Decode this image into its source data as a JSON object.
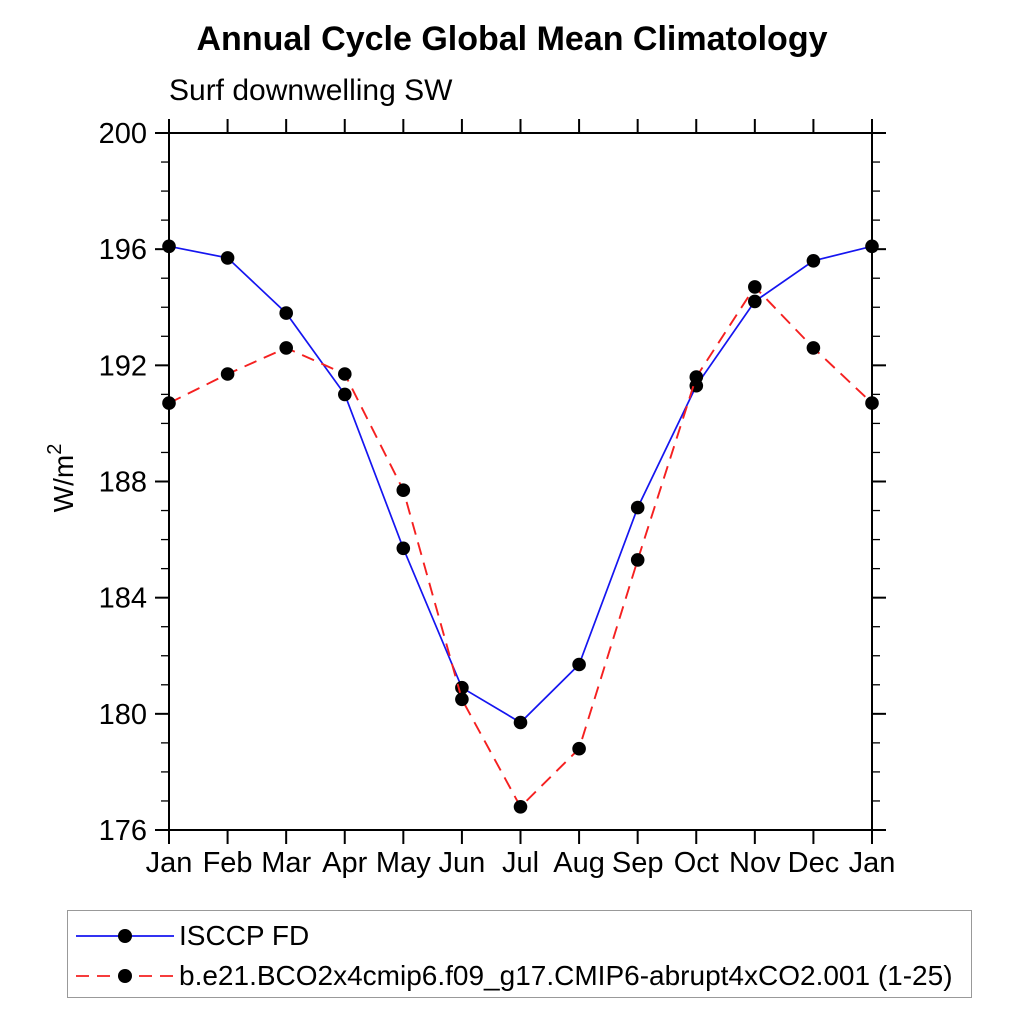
{
  "chart_data": {
    "type": "line",
    "title": "Annual Cycle Global Mean Climatology",
    "subtitle": "Surf downwelling SW",
    "x_labels": [
      "Jan",
      "Feb",
      "Mar",
      "Apr",
      "May",
      "Jun",
      "Jul",
      "Aug",
      "Sep",
      "Oct",
      "Nov",
      "Dec",
      "Jan"
    ],
    "ylabel_base": "W/m",
    "ylabel_exponent": "2",
    "ylim": [
      176,
      200
    ],
    "y_major_step": 4,
    "y_minor_step": 1,
    "y_major_tick_labels": [
      "176",
      "180",
      "184",
      "188",
      "192",
      "196",
      "200"
    ],
    "grid": false,
    "legend_position": "bottom",
    "axis_color": "#000000",
    "marker_color": "#000000",
    "series": [
      {
        "name": "ISCCP FD",
        "color": "#1515f0",
        "line_style": "solid",
        "marker": "dot",
        "values": [
          196.1,
          195.7,
          193.8,
          191.0,
          185.7,
          180.9,
          179.7,
          181.7,
          187.1,
          191.3,
          194.2,
          195.6,
          196.1
        ]
      },
      {
        "name": "b.e21.BCO2x4cmip6.f09_g17.CMIP6-abrupt4xCO2.001 (1-25)",
        "color": "#f52020",
        "line_style": "dashed",
        "marker": "dot",
        "values": [
          190.7,
          191.7,
          192.6,
          191.7,
          187.7,
          180.5,
          176.8,
          178.8,
          185.3,
          191.6,
          194.7,
          192.6,
          190.7
        ]
      }
    ]
  }
}
